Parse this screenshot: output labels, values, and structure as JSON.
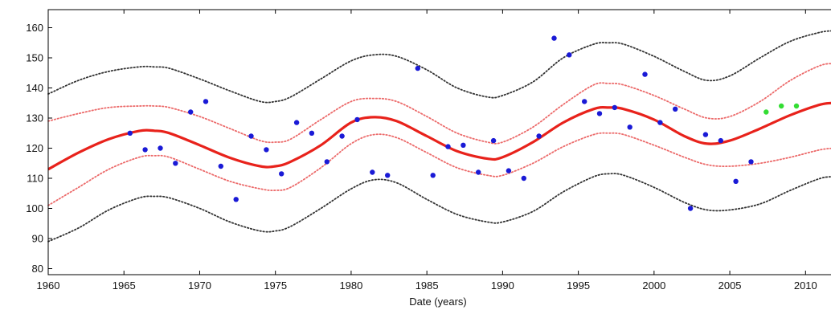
{
  "chart_data": {
    "type": "scatter",
    "title": "",
    "xlabel": "Date (years)",
    "ylabel": "",
    "xlim": [
      1960,
      2012
    ],
    "ylim": [
      78,
      166
    ],
    "grid": false,
    "x_ticks": [
      1960,
      1965,
      1970,
      1975,
      1980,
      1985,
      1990,
      1995,
      2000,
      2005,
      2010
    ],
    "y_ticks": [
      80,
      90,
      100,
      110,
      120,
      130,
      140,
      150,
      160
    ],
    "colors": {
      "mean": "#e8221b",
      "inner_band": "#ec6a6a",
      "outer_band": "#333333",
      "observed": "#1a1ad6",
      "held_out": "#33dd33",
      "axes": "#000000"
    },
    "curves": [
      {
        "role": "mean",
        "x": [
          1960,
          1962,
          1964,
          1966,
          1967,
          1968,
          1970,
          1972,
          1974,
          1975,
          1976,
          1978,
          1980,
          1981.5,
          1983,
          1985,
          1987,
          1989,
          1990,
          1992,
          1994,
          1996,
          1997,
          1998,
          2000,
          2002,
          2003.5,
          2005,
          2007,
          2009,
          2011,
          2012
        ],
        "y": [
          113,
          118.5,
          123,
          125.7,
          125.8,
          125,
          121,
          116.8,
          114,
          114,
          115.5,
          121,
          128.5,
          130.3,
          129,
          124,
          119,
          116.5,
          117,
          122,
          128.5,
          133,
          133.5,
          133,
          129.5,
          124,
          121.5,
          122.5,
          126.5,
          131,
          134.5,
          135
        ]
      },
      {
        "role": "inner_upper",
        "x": [
          1960,
          1962,
          1964,
          1966,
          1967,
          1968,
          1970,
          1972,
          1974,
          1975,
          1976,
          1978,
          1980,
          1981.5,
          1983,
          1985,
          1987,
          1989,
          1990,
          1992,
          1994,
          1996,
          1997,
          1998,
          2000,
          2002,
          2003.5,
          2005,
          2007,
          2009,
          2011,
          2012
        ],
        "y": [
          129,
          131.5,
          133.5,
          134,
          134,
          133.5,
          130.5,
          126.5,
          122.5,
          122,
          123,
          129.5,
          135.5,
          136.5,
          135.5,
          130.5,
          125,
          122,
          122,
          127,
          134.5,
          141,
          141.5,
          141,
          137.5,
          133,
          130,
          130.5,
          135.5,
          142.5,
          147.5,
          148
        ]
      },
      {
        "role": "inner_lower",
        "x": [
          1960,
          1962,
          1964,
          1966,
          1967,
          1968,
          1970,
          1972,
          1974,
          1975,
          1976,
          1978,
          1980,
          1981.5,
          1983,
          1985,
          1987,
          1989,
          1990,
          1992,
          1994,
          1996,
          1997,
          1998,
          2000,
          2002,
          2003.5,
          2005,
          2007,
          2009,
          2011,
          2012
        ],
        "y": [
          101,
          107,
          113,
          117,
          117.5,
          117,
          113,
          109,
          106.5,
          106,
          107,
          113.5,
          121.5,
          124.5,
          123.5,
          118.5,
          113.5,
          111,
          111,
          115,
          120.5,
          124.5,
          125,
          124.5,
          121,
          117,
          114.5,
          114,
          115,
          117,
          119.5,
          120
        ]
      },
      {
        "role": "outer_upper",
        "x": [
          1960,
          1962,
          1964,
          1966,
          1967,
          1968,
          1970,
          1972,
          1974,
          1975,
          1976,
          1978,
          1980,
          1981.5,
          1983,
          1985,
          1987,
          1989,
          1990,
          1992,
          1994,
          1996,
          1997,
          1998,
          2000,
          2002,
          2003.5,
          2005,
          2007,
          2009,
          2011,
          2012
        ],
        "y": [
          138,
          142.5,
          145.5,
          147,
          147,
          146.5,
          143,
          139,
          135.5,
          135.5,
          137,
          143,
          149,
          151,
          150.5,
          146,
          140,
          137,
          137.5,
          142,
          150,
          154.5,
          155,
          154.5,
          150.5,
          145.5,
          142.5,
          144,
          150,
          155.5,
          158.5,
          159
        ]
      },
      {
        "role": "outer_lower",
        "x": [
          1960,
          1962,
          1964,
          1966,
          1967,
          1968,
          1970,
          1972,
          1974,
          1975,
          1976,
          1978,
          1980,
          1981.5,
          1983,
          1985,
          1987,
          1989,
          1990,
          1992,
          1994,
          1996,
          1997,
          1998,
          2000,
          2002,
          2003.5,
          2005,
          2007,
          2009,
          2011,
          2012
        ],
        "y": [
          89,
          93.5,
          99.5,
          103.5,
          104,
          103.5,
          100,
          95.5,
          92.5,
          92.5,
          94,
          100,
          106.5,
          109.5,
          108.5,
          103,
          98,
          95.5,
          95.5,
          99,
          105.5,
          110.5,
          111.5,
          111,
          107,
          102,
          99.5,
          99.5,
          101.5,
          106,
          110,
          110.5
        ]
      }
    ],
    "points": [
      {
        "group": "observed",
        "x": [
          1965.4,
          1966.4,
          1967.4,
          1968.4,
          1969.4,
          1970.4,
          1971.4,
          1972.4,
          1973.4,
          1974.4,
          1975.4,
          1976.4,
          1977.4,
          1978.4,
          1979.4,
          1980.4,
          1981.4,
          1982.4,
          1984.4,
          1985.4,
          1986.4,
          1987.4,
          1988.4,
          1989.4,
          1990.4,
          1991.4,
          1992.4,
          1993.4,
          1994.4,
          1995.4,
          1996.4,
          1997.4,
          1998.4,
          1999.4,
          2000.4,
          2001.4,
          2002.4,
          2003.4,
          2004.4,
          2005.4,
          2006.4
        ],
        "y": [
          125,
          119.5,
          120,
          115,
          132,
          135.5,
          114,
          103,
          124,
          119.5,
          111.5,
          128.5,
          125,
          115.5,
          124,
          129.5,
          112,
          111,
          146.5,
          111,
          120.5,
          121,
          112,
          122.5,
          112.5,
          110,
          124,
          156.5,
          151,
          135.5,
          131.5,
          133.5,
          127,
          144.5,
          128.5,
          133,
          100,
          124.5,
          122.5,
          109,
          115.5
        ]
      },
      {
        "group": "held_out",
        "x": [
          2007.4,
          2008.4,
          2009.4
        ],
        "y": [
          132,
          134,
          134
        ]
      }
    ]
  }
}
